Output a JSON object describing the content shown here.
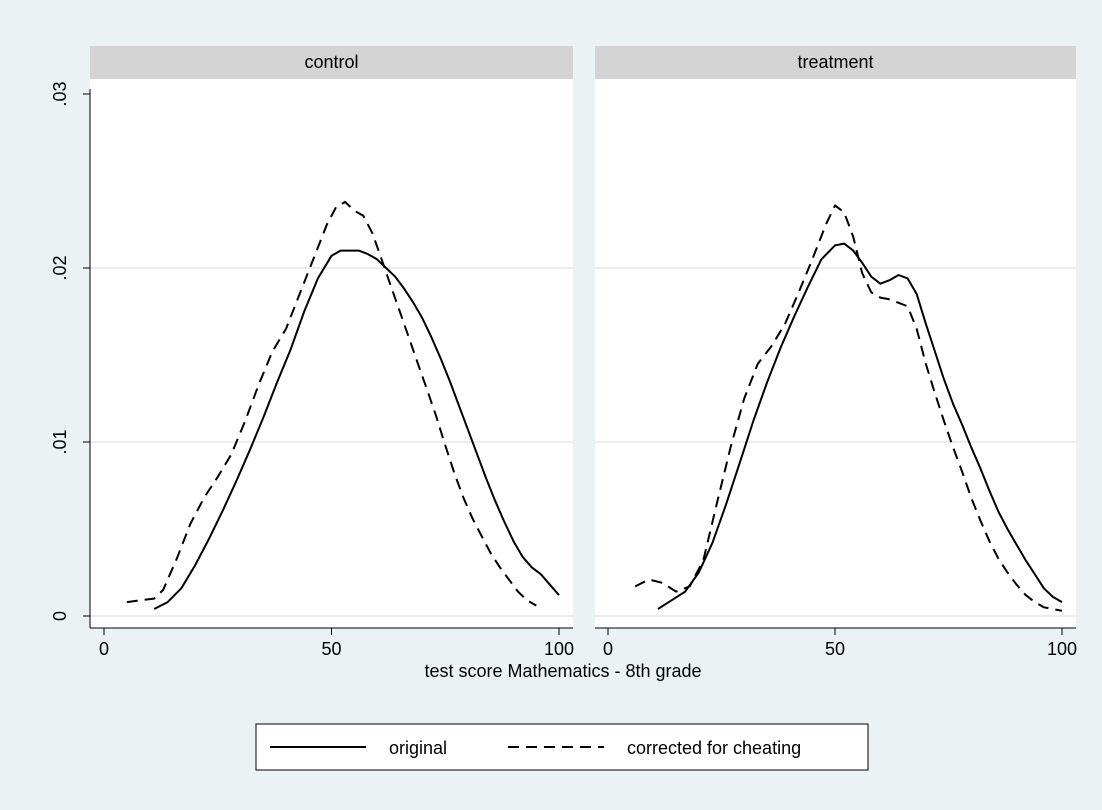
{
  "chart_data": {
    "type": "line",
    "xlabel": "test score Mathematics - 8th grade",
    "ylabel": "",
    "xlim": [
      0,
      100
    ],
    "ylim": [
      0,
      0.03
    ],
    "x_ticks": [
      0,
      50,
      100
    ],
    "x_tick_labels": [
      "0",
      "50",
      "100"
    ],
    "y_ticks": [
      0,
      0.01,
      0.02,
      0.03
    ],
    "y_tick_labels": [
      "0",
      ".01",
      ".02",
      ".03"
    ],
    "grid": true,
    "legend": {
      "position": "bottom",
      "entries": [
        {
          "label": "original",
          "style": "solid"
        },
        {
          "label": "corrected for cheating",
          "style": "dashed"
        }
      ]
    },
    "panels": [
      {
        "title": "control",
        "series": [
          {
            "name": "original",
            "style": "solid",
            "x": [
              11,
              14,
              17,
              20,
              23,
              26,
              29,
              32,
              35,
              38,
              41,
              44,
              47,
              50,
              52,
              54,
              56,
              58,
              60,
              62,
              64,
              66,
              68,
              70,
              72,
              74,
              76,
              78,
              80,
              82,
              84,
              86,
              88,
              90,
              92,
              94,
              96,
              98,
              100
            ],
            "y": [
              0.0004,
              0.0008,
              0.0016,
              0.0029,
              0.0044,
              0.006,
              0.0077,
              0.0095,
              0.0114,
              0.0134,
              0.0153,
              0.0175,
              0.0194,
              0.0207,
              0.021,
              0.021,
              0.021,
              0.0208,
              0.0205,
              0.02,
              0.0195,
              0.0188,
              0.018,
              0.0171,
              0.016,
              0.0148,
              0.0135,
              0.0121,
              0.0107,
              0.0093,
              0.0079,
              0.0066,
              0.0054,
              0.0043,
              0.0034,
              0.0028,
              0.0024,
              0.0018,
              0.0012
            ]
          },
          {
            "name": "corrected for cheating",
            "style": "dashed",
            "x": [
              5,
              8,
              11,
              13,
              16,
              19,
              22,
              25,
              28,
              31,
              34,
              37,
              40,
              43,
              46,
              49,
              51,
              53,
              55,
              57,
              59,
              61,
              63,
              65,
              67,
              69,
              71,
              73,
              75,
              77,
              79,
              81,
              83,
              85,
              87,
              89,
              91,
              93,
              95
            ],
            "y": [
              0.0008,
              0.0009,
              0.001,
              0.0015,
              0.0033,
              0.0053,
              0.0068,
              0.008,
              0.0093,
              0.0112,
              0.0133,
              0.0152,
              0.0165,
              0.0185,
              0.0205,
              0.0225,
              0.0235,
              0.0238,
              0.0233,
              0.023,
              0.022,
              0.0205,
              0.019,
              0.0175,
              0.016,
              0.0145,
              0.013,
              0.0115,
              0.0098,
              0.0082,
              0.0068,
              0.0056,
              0.0046,
              0.0036,
              0.0028,
              0.0021,
              0.0014,
              0.0009,
              0.0006
            ]
          }
        ]
      },
      {
        "title": "treatment",
        "series": [
          {
            "name": "original",
            "style": "solid",
            "x": [
              11,
              14,
              17,
              20,
              23,
              26,
              29,
              32,
              35,
              38,
              41,
              44,
              47,
              50,
              52,
              54,
              56,
              58,
              60,
              62,
              64,
              66,
              68,
              70,
              72,
              74,
              76,
              78,
              80,
              82,
              84,
              86,
              88,
              90,
              92,
              94,
              96,
              98,
              100
            ],
            "y": [
              0.0004,
              0.0009,
              0.0014,
              0.0025,
              0.0042,
              0.0064,
              0.0088,
              0.0112,
              0.0134,
              0.0154,
              0.0172,
              0.0189,
              0.0205,
              0.0213,
              0.0214,
              0.021,
              0.0203,
              0.0195,
              0.0191,
              0.0193,
              0.0196,
              0.0194,
              0.0185,
              0.0168,
              0.0152,
              0.0136,
              0.0122,
              0.011,
              0.0097,
              0.0085,
              0.0072,
              0.006,
              0.005,
              0.0041,
              0.0032,
              0.0024,
              0.0016,
              0.0011,
              0.0008
            ]
          },
          {
            "name": "corrected for cheating",
            "style": "dashed",
            "x": [
              6,
              9,
              12,
              15,
              18,
              21,
              24,
              27,
              30,
              33,
              36,
              39,
              42,
              45,
              48,
              50,
              52,
              54,
              56,
              58,
              60,
              62,
              64,
              66,
              68,
              70,
              72,
              74,
              76,
              78,
              80,
              82,
              84,
              86,
              88,
              90,
              92,
              94,
              96,
              98,
              100
            ],
            "y": [
              0.0017,
              0.0021,
              0.0019,
              0.0014,
              0.0017,
              0.0032,
              0.0065,
              0.0097,
              0.0125,
              0.0145,
              0.0155,
              0.0168,
              0.0186,
              0.0205,
              0.0225,
              0.0236,
              0.0232,
              0.0218,
              0.0197,
              0.0186,
              0.0183,
              0.0182,
              0.018,
              0.0178,
              0.0165,
              0.0145,
              0.0128,
              0.0112,
              0.0097,
              0.0083,
              0.0068,
              0.0055,
              0.0043,
              0.0033,
              0.0025,
              0.0018,
              0.0012,
              0.0008,
              0.0005,
              0.0004,
              0.0003
            ]
          }
        ]
      }
    ]
  }
}
